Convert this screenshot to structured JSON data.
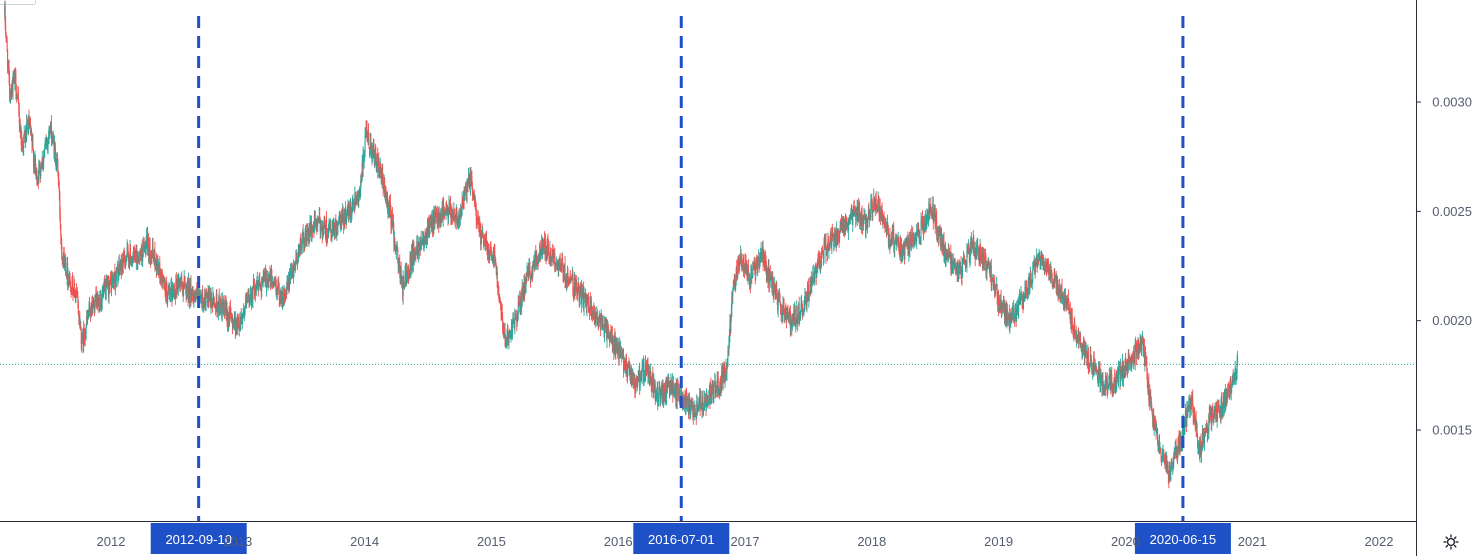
{
  "chart_data": {
    "type": "candlestick",
    "x_axis": {
      "tick_labels": [
        "2012",
        "2013",
        "2014",
        "2015",
        "2016",
        "2017",
        "2018",
        "2019",
        "2020",
        "2021",
        "2022"
      ]
    },
    "y_axis": {
      "tick_labels": [
        "0.0015",
        "0.0020",
        "0.0025",
        "0.0030"
      ],
      "range": [
        0.00112,
        0.00342
      ]
    },
    "last_price_line": 0.0018,
    "vertical_markers": [
      {
        "date": "2012-09-10",
        "label": "2012-09-10"
      },
      {
        "date": "2016-07-01",
        "label": "2016-07-01"
      },
      {
        "date": "2020-06-15",
        "label": "2020-06-15"
      }
    ],
    "series": {
      "name": "",
      "approx_close": [
        [
          "2011-03-01",
          0.0034
        ],
        [
          "2011-03-15",
          0.00305
        ],
        [
          "2011-04-01",
          0.0031
        ],
        [
          "2011-04-20",
          0.0028
        ],
        [
          "2011-05-10",
          0.0029
        ],
        [
          "2011-06-01",
          0.00265
        ],
        [
          "2011-06-20",
          0.00275
        ],
        [
          "2011-07-10",
          0.00288
        ],
        [
          "2011-08-01",
          0.0027
        ],
        [
          "2011-08-12",
          0.00232
        ],
        [
          "2011-09-01",
          0.0022
        ],
        [
          "2011-09-25",
          0.0021
        ],
        [
          "2011-10-10",
          0.0019
        ],
        [
          "2011-11-01",
          0.00205
        ],
        [
          "2011-12-01",
          0.0021
        ],
        [
          "2012-01-15",
          0.0022
        ],
        [
          "2012-02-15",
          0.0023
        ],
        [
          "2012-03-15",
          0.00228
        ],
        [
          "2012-04-15",
          0.00235
        ],
        [
          "2012-05-15",
          0.00225
        ],
        [
          "2012-06-15",
          0.0021
        ],
        [
          "2012-07-15",
          0.00218
        ],
        [
          "2012-09-10",
          0.0021
        ],
        [
          "2012-11-01",
          0.00208
        ],
        [
          "2013-01-01",
          0.00198
        ],
        [
          "2013-02-15",
          0.00215
        ],
        [
          "2013-04-01",
          0.0022
        ],
        [
          "2013-05-15",
          0.0021
        ],
        [
          "2013-07-01",
          0.00235
        ],
        [
          "2013-08-15",
          0.00245
        ],
        [
          "2013-10-01",
          0.0024
        ],
        [
          "2013-11-15",
          0.0025
        ],
        [
          "2013-12-20",
          0.0026
        ],
        [
          "2014-01-05",
          0.00285
        ],
        [
          "2014-02-10",
          0.0027
        ],
        [
          "2014-03-15",
          0.0025
        ],
        [
          "2014-04-20",
          0.00215
        ],
        [
          "2014-05-20",
          0.0023
        ],
        [
          "2014-07-01",
          0.00242
        ],
        [
          "2014-08-15",
          0.0025
        ],
        [
          "2014-10-01",
          0.00248
        ],
        [
          "2014-11-01",
          0.00265
        ],
        [
          "2014-12-01",
          0.00238
        ],
        [
          "2015-01-10",
          0.0023
        ],
        [
          "2015-02-10",
          0.0019
        ],
        [
          "2015-03-10",
          0.002
        ],
        [
          "2015-04-15",
          0.0022
        ],
        [
          "2015-06-01",
          0.00235
        ],
        [
          "2015-07-15",
          0.00225
        ],
        [
          "2015-09-01",
          0.00215
        ],
        [
          "2015-10-15",
          0.00205
        ],
        [
          "2015-12-01",
          0.00195
        ],
        [
          "2016-01-20",
          0.0018
        ],
        [
          "2016-02-20",
          0.0017
        ],
        [
          "2016-03-20",
          0.00178
        ],
        [
          "2016-04-25",
          0.00165
        ],
        [
          "2016-06-01",
          0.0017
        ],
        [
          "2016-07-01",
          0.00165
        ],
        [
          "2016-08-01",
          0.00158
        ],
        [
          "2016-09-01",
          0.00163
        ],
        [
          "2016-10-15",
          0.0017
        ],
        [
          "2016-11-10",
          0.0018
        ],
        [
          "2016-11-25",
          0.0021
        ],
        [
          "2016-12-15",
          0.00228
        ],
        [
          "2017-01-15",
          0.0022
        ],
        [
          "2017-02-20",
          0.0023
        ],
        [
          "2017-04-01",
          0.0021
        ],
        [
          "2017-05-15",
          0.002
        ],
        [
          "2017-06-15",
          0.00205
        ],
        [
          "2017-07-15",
          0.0022
        ],
        [
          "2017-08-15",
          0.00232
        ],
        [
          "2017-10-01",
          0.0024
        ],
        [
          "2017-11-15",
          0.0025
        ],
        [
          "2017-12-15",
          0.00245
        ],
        [
          "2018-01-10",
          0.00255
        ],
        [
          "2018-02-15",
          0.0024
        ],
        [
          "2018-04-01",
          0.00232
        ],
        [
          "2018-05-15",
          0.0024
        ],
        [
          "2018-06-20",
          0.00252
        ],
        [
          "2018-08-01",
          0.0023
        ],
        [
          "2018-09-15",
          0.00222
        ],
        [
          "2018-10-15",
          0.00235
        ],
        [
          "2018-12-01",
          0.00225
        ],
        [
          "2019-01-01",
          0.0021
        ],
        [
          "2019-02-01",
          0.002
        ],
        [
          "2019-03-15",
          0.0021
        ],
        [
          "2019-05-01",
          0.0023
        ],
        [
          "2019-06-01",
          0.0022
        ],
        [
          "2019-07-15",
          0.0021
        ],
        [
          "2019-08-15",
          0.0019
        ],
        [
          "2019-10-01",
          0.0018
        ],
        [
          "2019-11-01",
          0.0017
        ],
        [
          "2019-12-01",
          0.00172
        ],
        [
          "2020-01-15",
          0.00182
        ],
        [
          "2020-02-20",
          0.0019
        ],
        [
          "2020-03-15",
          0.0016
        ],
        [
          "2020-04-10",
          0.0014
        ],
        [
          "2020-05-10",
          0.0013
        ],
        [
          "2020-06-15",
          0.0015
        ],
        [
          "2020-07-10",
          0.00165
        ],
        [
          "2020-08-01",
          0.0014
        ],
        [
          "2020-09-01",
          0.00155
        ],
        [
          "2020-10-01",
          0.0016
        ],
        [
          "2020-11-01",
          0.0017
        ],
        [
          "2020-11-20",
          0.0018
        ]
      ]
    },
    "colors": {
      "up": "#26a69a",
      "down": "#ef5350",
      "marker_line": "#1e50c8",
      "marker_label_bg": "#1e50c8",
      "price_line": "#26a69a",
      "axis_text": "#555d6e",
      "axis_line": "#2a2e39"
    }
  },
  "ui": {
    "settings_icon": "gear-icon"
  }
}
